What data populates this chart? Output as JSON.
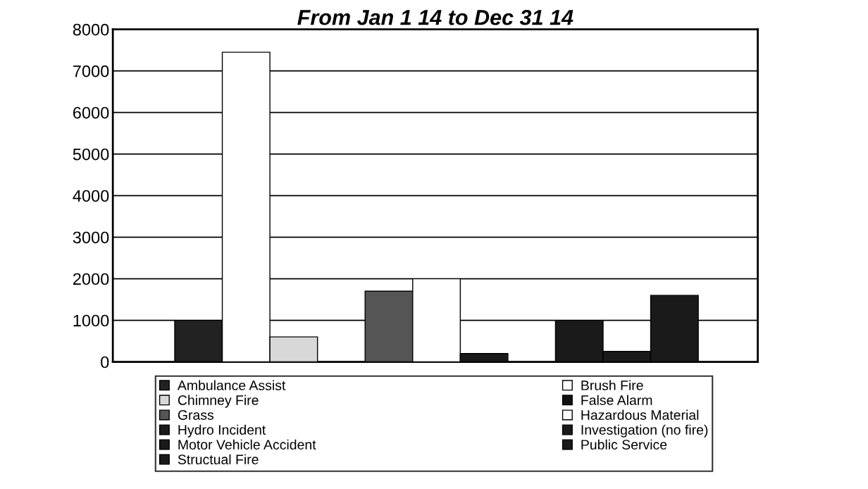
{
  "chart_data": {
    "type": "bar",
    "title": "From Jan 1 14 to Dec 31 14",
    "categories": [
      null
    ],
    "series": [
      {
        "name": "Ambulance Assist",
        "color": "#222222",
        "values": [
          1000
        ]
      },
      {
        "name": "Brush Fire",
        "color": "#ffffff",
        "values": [
          7450
        ]
      },
      {
        "name": "Chimney Fire",
        "color": "#d8d8d8",
        "values": [
          600
        ]
      },
      {
        "name": "False Alarm",
        "color": "#111111",
        "values": [
          0
        ]
      },
      {
        "name": "Grass",
        "color": "#555555",
        "values": [
          1700
        ]
      },
      {
        "name": "Hazardous Material",
        "color": "#ffffff",
        "values": [
          2000
        ]
      },
      {
        "name": "Hydro Incident",
        "color": "#1a1a1a",
        "values": [
          200
        ]
      },
      {
        "name": "Investigation (no fire)",
        "color": "#1a1a1a",
        "values": [
          0
        ]
      },
      {
        "name": "Motor Vehicle Accident",
        "color": "#1a1a1a",
        "values": [
          1000
        ]
      },
      {
        "name": "Public Service",
        "color": "#1a1a1a",
        "values": [
          250
        ]
      },
      {
        "name": "Structual Fire",
        "color": "#1a1a1a",
        "values": [
          1600
        ]
      }
    ],
    "ylim": [
      0,
      8000
    ],
    "yticks": [
      0,
      1000,
      2000,
      3000,
      4000,
      5000,
      6000,
      7000,
      8000
    ],
    "grid": "y",
    "legend": "bottom"
  }
}
